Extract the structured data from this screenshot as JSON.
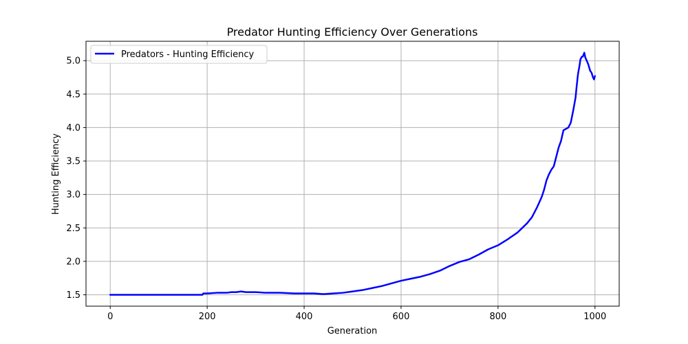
{
  "chart_data": {
    "type": "line",
    "title": "Predator Hunting Efficiency Over Generations",
    "xlabel": "Generation",
    "ylabel": "Hunting Efficiency",
    "xlim": [
      -50,
      1050
    ],
    "ylim": [
      1.33,
      5.29
    ],
    "xticks": [
      0,
      200,
      400,
      600,
      800,
      1000
    ],
    "yticks": [
      1.5,
      2.0,
      2.5,
      3.0,
      3.5,
      4.0,
      4.5,
      5.0
    ],
    "xtick_labels": [
      "0",
      "200",
      "400",
      "600",
      "800",
      "1000"
    ],
    "ytick_labels": [
      "1.5",
      "2.0",
      "2.5",
      "3.0",
      "3.5",
      "4.0",
      "4.5",
      "5.0"
    ],
    "grid": true,
    "legend_position": "top-left",
    "colors": {
      "series": "#0000ff",
      "grid": "#b0b0b0"
    },
    "series": [
      {
        "name": "Predators - Hunting Efficiency",
        "x": [
          0,
          50,
          100,
          150,
          190,
          192,
          200,
          220,
          240,
          250,
          260,
          270,
          280,
          300,
          320,
          350,
          380,
          400,
          420,
          440,
          460,
          480,
          500,
          520,
          540,
          560,
          580,
          600,
          620,
          640,
          660,
          680,
          700,
          720,
          740,
          760,
          780,
          800,
          820,
          840,
          860,
          870,
          880,
          890,
          895,
          900,
          905,
          910,
          915,
          920,
          925,
          930,
          935,
          940,
          945,
          950,
          955,
          960,
          962,
          965,
          968,
          970,
          973,
          975,
          978,
          980,
          983,
          986,
          990,
          993,
          996,
          998,
          1000
        ],
        "values": [
          1.5,
          1.5,
          1.5,
          1.5,
          1.5,
          1.52,
          1.52,
          1.53,
          1.53,
          1.54,
          1.54,
          1.55,
          1.54,
          1.54,
          1.53,
          1.53,
          1.52,
          1.52,
          1.52,
          1.51,
          1.52,
          1.53,
          1.55,
          1.57,
          1.6,
          1.63,
          1.67,
          1.71,
          1.74,
          1.77,
          1.81,
          1.86,
          1.93,
          1.99,
          2.03,
          2.1,
          2.18,
          2.24,
          2.33,
          2.43,
          2.57,
          2.66,
          2.8,
          2.96,
          3.07,
          3.21,
          3.3,
          3.37,
          3.42,
          3.56,
          3.7,
          3.8,
          3.96,
          3.98,
          4.0,
          4.07,
          4.25,
          4.45,
          4.6,
          4.8,
          4.92,
          5.02,
          5.06,
          5.06,
          5.12,
          5.05,
          5.0,
          4.95,
          4.85,
          4.82,
          4.75,
          4.72,
          4.77
        ]
      }
    ]
  }
}
